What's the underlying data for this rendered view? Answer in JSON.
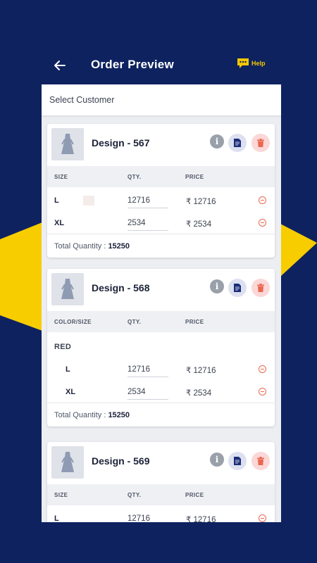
{
  "header": {
    "title": "Order Preview",
    "help_label": "Help"
  },
  "colors": {
    "background": "#0e2260",
    "accent": "#f5c800",
    "delete": "#e9674f"
  },
  "select_customer": {
    "placeholder": "Select Customer"
  },
  "cards": [
    {
      "design": "Design - 567",
      "headers": {
        "size": "SIZE",
        "qty": "QTY.",
        "price": "PRICE"
      },
      "rows": [
        {
          "size": "L",
          "qty": "12716",
          "price": "₹ 12716"
        },
        {
          "size": "XL",
          "qty": "2534",
          "price": "₹ 2534"
        }
      ],
      "total_label": "Total Quantity :",
      "total_value": "15250"
    },
    {
      "design": "Design - 568",
      "headers": {
        "size": "COLOR/SIZE",
        "qty": "QTY.",
        "price": "PRICE"
      },
      "color": "RED",
      "rows": [
        {
          "size": "L",
          "qty": "12716",
          "price": "₹ 12716"
        },
        {
          "size": "XL",
          "qty": "2534",
          "price": "₹ 2534"
        }
      ],
      "total_label": "Total Quantity :",
      "total_value": "15250"
    },
    {
      "design": "Design - 569",
      "headers": {
        "size": "SIZE",
        "qty": "QTY.",
        "price": "PRICE"
      },
      "rows": [
        {
          "size": "L",
          "qty": "12716",
          "price": "₹ 12716"
        }
      ]
    }
  ],
  "icons": {
    "back": "arrow-left-icon",
    "help": "chat-bubble-icon",
    "info": "info-icon",
    "doc": "document-icon",
    "delete": "trash-icon",
    "thumb": "dress-icon",
    "remove": "minus-circle-icon"
  }
}
